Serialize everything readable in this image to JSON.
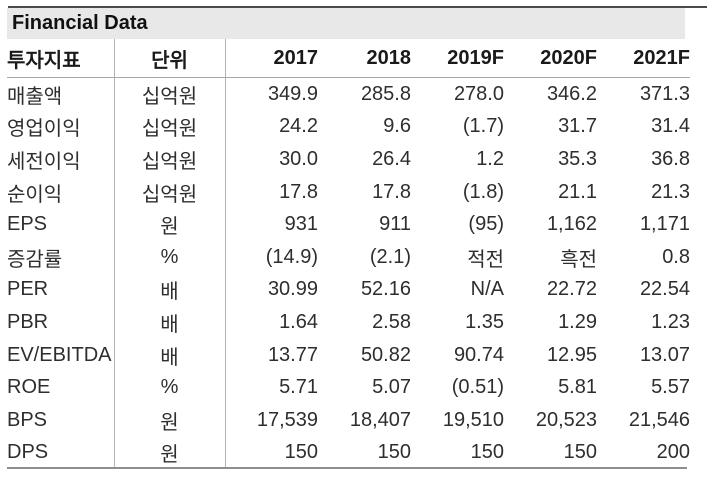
{
  "title": "Financial Data",
  "colors": {
    "title_bar_bg": "#e8e8e8",
    "top_rule": "#4a4a4a",
    "bottom_rule": "#8e8e8e",
    "grid_line": "#b2b2b2",
    "text": "#2e2e2e"
  },
  "table": {
    "headers": [
      "투자지표",
      "단위",
      "2017",
      "2018",
      "2019F",
      "2020F",
      "2021F"
    ],
    "rows": [
      {
        "label": "매출액",
        "unit": "십억원",
        "values": [
          "349.9",
          "285.8",
          "278.0",
          "346.2",
          "371.3"
        ]
      },
      {
        "label": "영업이익",
        "unit": "십억원",
        "values": [
          "24.2",
          "9.6",
          "(1.7)",
          "31.7",
          "31.4"
        ]
      },
      {
        "label": "세전이익",
        "unit": "십억원",
        "values": [
          "30.0",
          "26.4",
          "1.2",
          "35.3",
          "36.8"
        ]
      },
      {
        "label": "순이익",
        "unit": "십억원",
        "values": [
          "17.8",
          "17.8",
          "(1.8)",
          "21.1",
          "21.3"
        ]
      },
      {
        "label": "EPS",
        "unit": "원",
        "values": [
          "931",
          "911",
          "(95)",
          "1,162",
          "1,171"
        ]
      },
      {
        "label": "증감률",
        "unit": "%",
        "values": [
          "(14.9)",
          "(2.1)",
          "적전",
          "흑전",
          "0.8"
        ]
      },
      {
        "label": "PER",
        "unit": "배",
        "values": [
          "30.99",
          "52.16",
          "N/A",
          "22.72",
          "22.54"
        ]
      },
      {
        "label": "PBR",
        "unit": "배",
        "values": [
          "1.64",
          "2.58",
          "1.35",
          "1.29",
          "1.23"
        ]
      },
      {
        "label": "EV/EBITDA",
        "unit": "배",
        "values": [
          "13.77",
          "50.82",
          "90.74",
          "12.95",
          "13.07"
        ]
      },
      {
        "label": "ROE",
        "unit": "%",
        "values": [
          "5.71",
          "5.07",
          "(0.51)",
          "5.81",
          "5.57"
        ]
      },
      {
        "label": "BPS",
        "unit": "원",
        "values": [
          "17,539",
          "18,407",
          "19,510",
          "20,523",
          "21,546"
        ]
      },
      {
        "label": "DPS",
        "unit": "원",
        "values": [
          "150",
          "150",
          "150",
          "150",
          "200"
        ]
      }
    ]
  }
}
